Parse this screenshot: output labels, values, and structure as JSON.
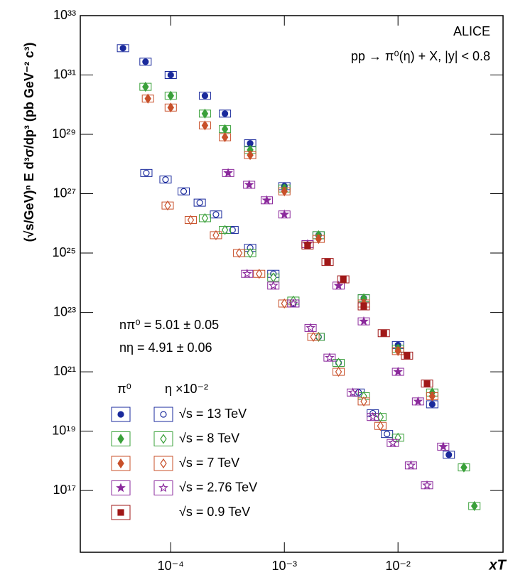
{
  "chart_data": {
    "type": "scatter",
    "title": "ALICE",
    "subtitle": "pp → π⁰(η) + X, |y| < 0.8",
    "y_label": "(√s/GeV)ⁿ E d³σ/dp³ (pb GeV⁻² c³)",
    "x_label": "xT",
    "xscale": "log",
    "yscale": "log",
    "xlim": [
      1.6e-05,
      0.084
    ],
    "ylim": [
      830000000000000.0,
      1e+33
    ],
    "xticks": [
      {
        "value": 0.0001,
        "label": "10⁻⁴"
      },
      {
        "value": 0.001,
        "label": "10⁻³"
      },
      {
        "value": 0.01,
        "label": "10⁻²"
      }
    ],
    "yticks": [
      {
        "value": 1e+17,
        "label": "10¹⁷"
      },
      {
        "value": 1e+19,
        "label": "10¹⁹"
      },
      {
        "value": 1e+21,
        "label": "10²¹"
      },
      {
        "value": 1e+23,
        "label": "10²³"
      },
      {
        "value": 1e+25,
        "label": "10²⁵"
      },
      {
        "value": 1e+27,
        "label": "10²⁷"
      },
      {
        "value": 1e+29,
        "label": "10²⁹"
      },
      {
        "value": 1e+31,
        "label": "10³¹"
      },
      {
        "value": 1e+33,
        "label": "10³³"
      }
    ],
    "annotations": [
      "nπ⁰ = 5.01 ± 0.05",
      "nη = 4.91 ± 0.06"
    ],
    "legend_headers": [
      "π⁰",
      "η ×10⁻²"
    ],
    "series": [
      {
        "name": "√s = 13 TeV",
        "color": "#1a2a9c",
        "marker": "circle",
        "pi0": {
          "x": [
            3.8e-05,
            6e-05,
            0.0001,
            0.0002,
            0.0003,
            0.0005,
            0.001,
            0.002,
            0.005,
            0.01,
            0.02,
            0.028
          ],
          "values": [
            8e+31,
            2.8e+31,
            1e+31,
            2e+30,
            5e+29,
            5e+28,
            1.8e+27,
            4e+25,
            3e+23,
            8e+21,
            8e+19,
            1.6e+18
          ]
        },
        "eta": {
          "x": [
            6.1e-05,
            9e-05,
            0.00013,
            0.00018,
            0.00025,
            0.00035,
            0.0005,
            0.0008,
            0.0012,
            0.002,
            0.003,
            0.0045,
            0.006,
            0.008
          ],
          "values": [
            5e+27,
            3e+27,
            1.2e+27,
            5e+26,
            2e+26,
            6e+25,
            1.5e+25,
            2e+24,
            2e+23,
            1.5e+22,
            2e+21,
            2e+20,
            4e+19,
            8e+18
          ]
        }
      },
      {
        "name": "√s = 8 TeV",
        "color": "#3aa03a",
        "marker": "diamond",
        "pi0": {
          "x": [
            6e-05,
            0.0001,
            0.0002,
            0.0003,
            0.0005,
            0.001,
            0.002,
            0.005,
            0.01,
            0.02,
            0.038,
            0.047
          ],
          "values": [
            4e+30,
            2e+30,
            5e+29,
            1.5e+29,
            3e+28,
            1.5e+27,
            4e+25,
            3e+23,
            6e+21,
            2e+20,
            6e+17,
            3e+16
          ]
        },
        "eta": {
          "x": [
            0.0002,
            0.0003,
            0.0005,
            0.0008,
            0.0012,
            0.002,
            0.003,
            0.005,
            0.007,
            0.01
          ],
          "values": [
            1.5e+26,
            6e+25,
            1e+25,
            1.5e+24,
            2.5e+23,
            1.5e+22,
            2e+21,
            1.5e+20,
            3e+19,
            6e+18
          ]
        }
      },
      {
        "name": "√s = 7 TeV",
        "color": "#c8502a",
        "marker": "diamond",
        "pi0": {
          "x": [
            6.3e-05,
            0.0001,
            0.0002,
            0.0003,
            0.0005,
            0.001,
            0.002,
            0.005,
            0.01,
            0.02
          ],
          "values": [
            1.6e+30,
            8e+29,
            2e+29,
            8e+28,
            2e+28,
            1.2e+27,
            3e+25,
            2e+23,
            5e+21,
            1.5e+20
          ]
        },
        "eta": {
          "x": [
            9.4e-05,
            0.00015,
            0.00025,
            0.0004,
            0.0006,
            0.001,
            0.0018,
            0.003,
            0.005,
            0.007
          ],
          "values": [
            4e+26,
            1.3e+26,
            4e+25,
            1e+25,
            2e+24,
            2e+23,
            1.5e+22,
            1e+21,
            1e+20,
            1.5e+19
          ]
        }
      },
      {
        "name": "√s = 2.76 TeV",
        "color": "#8b2a9c",
        "marker": "star",
        "pi0": {
          "x": [
            0.00032,
            0.00049,
            0.0007,
            0.001,
            0.0016,
            0.003,
            0.005,
            0.01,
            0.015,
            0.025
          ],
          "values": [
            5e+27,
            2e+27,
            6e+26,
            2e+26,
            2e+25,
            8e+23,
            5e+22,
            1e+21,
            1e+20,
            3e+18
          ]
        },
        "eta": {
          "x": [
            0.00047,
            0.0008,
            0.0012,
            0.0017,
            0.0025,
            0.004,
            0.006,
            0.009,
            0.013,
            0.018
          ],
          "values": [
            2e+24,
            8e+23,
            2e+23,
            3e+22,
            3e+21,
            2e+20,
            3e+19,
            4e+18,
            7e+17,
            1.5e+17
          ]
        }
      },
      {
        "name": "√s = 0.9 TeV",
        "color": "#a01818",
        "marker": "square",
        "pi0": {
          "x": [
            0.0016,
            0.0024,
            0.0033,
            0.005,
            0.0075,
            0.012,
            0.018
          ],
          "values": [
            1.8e+25,
            5e+24,
            1.3e+24,
            1.6e+23,
            2e+22,
            3.5e+21,
            4e+20
          ]
        }
      }
    ]
  }
}
